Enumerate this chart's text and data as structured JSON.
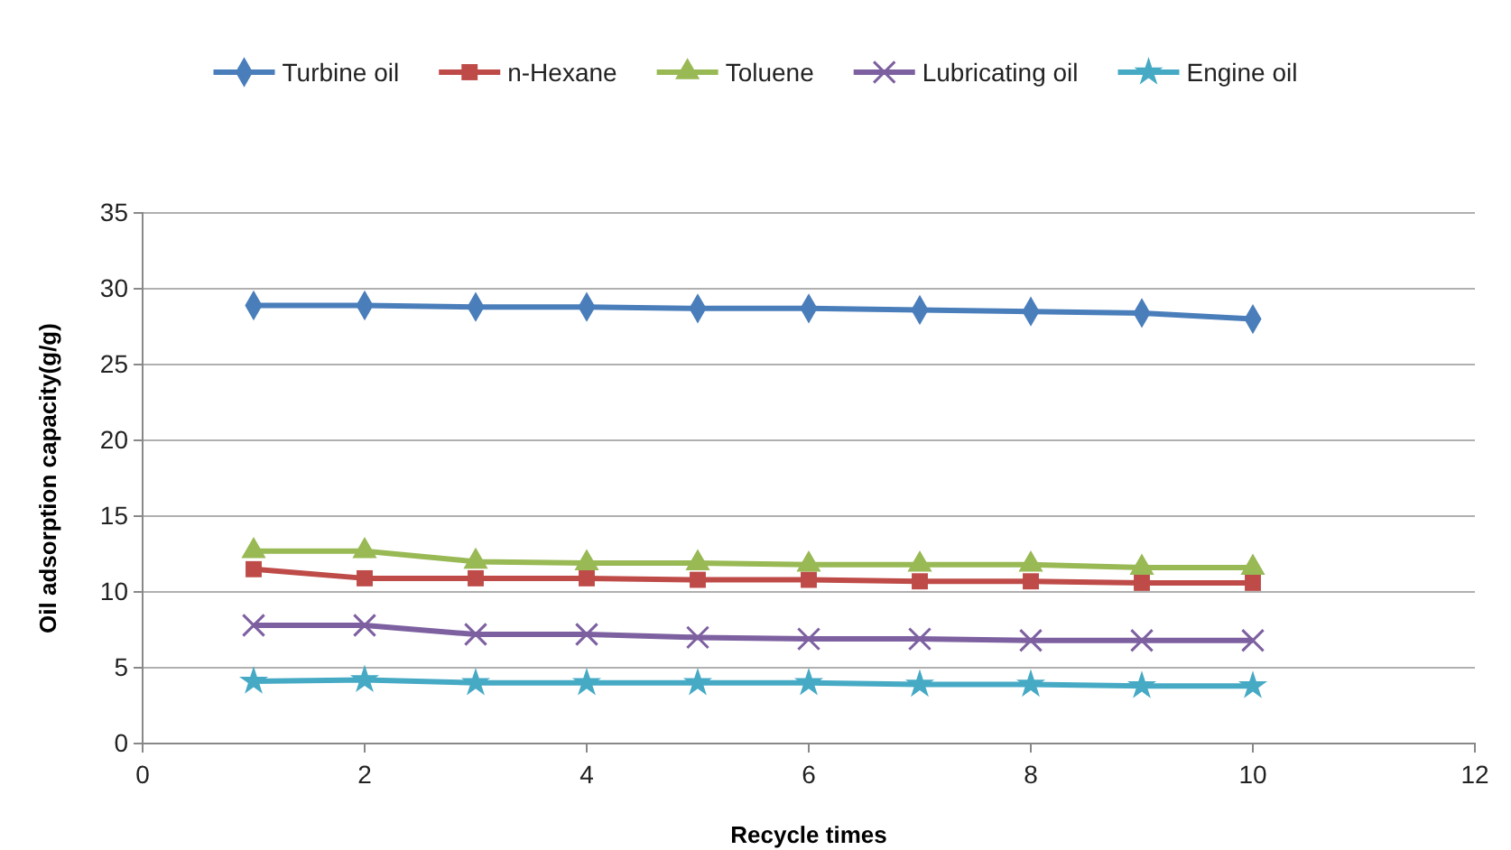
{
  "chart_data": {
    "type": "line",
    "xlabel": "Recycle times",
    "ylabel": "Oil adsorption capacity(g/g)",
    "x": [
      1,
      2,
      3,
      4,
      5,
      6,
      7,
      8,
      9,
      10
    ],
    "series": [
      {
        "name": "Turbine oil",
        "color": "#4a7ebb",
        "marker": "diamond",
        "values": [
          28.9,
          28.9,
          28.8,
          28.8,
          28.7,
          28.7,
          28.6,
          28.5,
          28.4,
          28.0
        ]
      },
      {
        "name": "n-Hexane",
        "color": "#be4b48",
        "marker": "square",
        "values": [
          11.5,
          10.9,
          10.9,
          10.9,
          10.8,
          10.8,
          10.7,
          10.7,
          10.6,
          10.6
        ]
      },
      {
        "name": "Toluene",
        "color": "#98b954",
        "marker": "triangle",
        "values": [
          12.7,
          12.7,
          12.0,
          11.9,
          11.9,
          11.8,
          11.8,
          11.8,
          11.6,
          11.6
        ]
      },
      {
        "name": "Lubricating oil",
        "color": "#7d60a0",
        "marker": "cross",
        "values": [
          7.8,
          7.8,
          7.2,
          7.2,
          7.0,
          6.9,
          6.9,
          6.8,
          6.8,
          6.8
        ]
      },
      {
        "name": "Engine oil",
        "color": "#46aac5",
        "marker": "star",
        "values": [
          4.1,
          4.2,
          4.0,
          4.0,
          4.0,
          4.0,
          3.9,
          3.9,
          3.8,
          3.8
        ]
      }
    ],
    "xlim": [
      0,
      12
    ],
    "xticks": [
      0,
      2,
      4,
      6,
      8,
      10,
      12
    ],
    "ylim": [
      0,
      35
    ],
    "yticks": [
      0,
      5,
      10,
      15,
      20,
      25,
      30,
      35
    ],
    "grid": "y",
    "legend": "top"
  }
}
